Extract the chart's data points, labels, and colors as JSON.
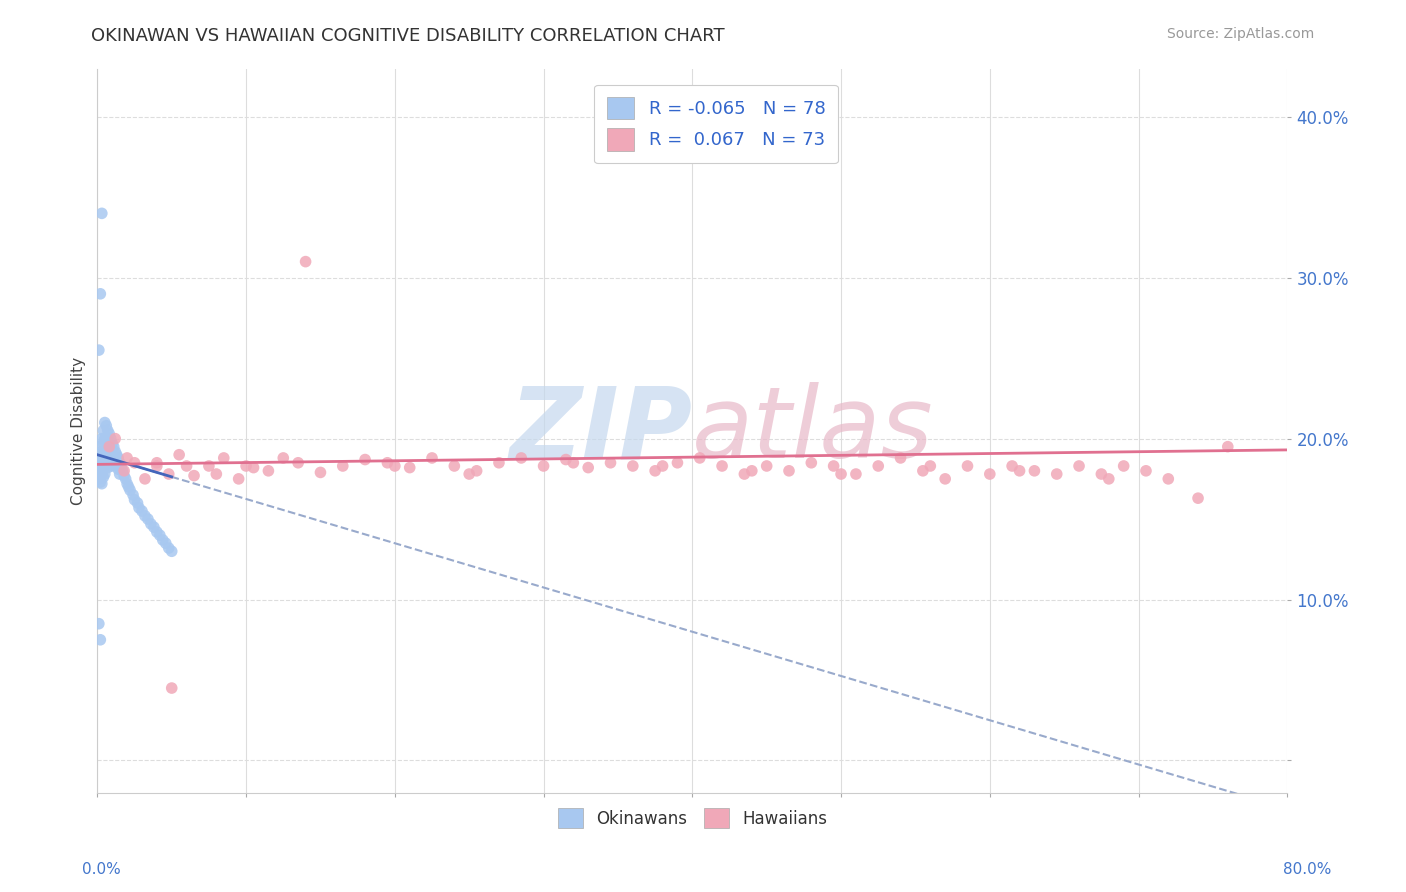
{
  "title": "OKINAWAN VS HAWAIIAN COGNITIVE DISABILITY CORRELATION CHART",
  "source": "Source: ZipAtlas.com",
  "ylabel": "Cognitive Disability",
  "xlim": [
    0.0,
    0.8
  ],
  "ylim": [
    -0.02,
    0.43
  ],
  "ytick_vals": [
    0.0,
    0.1,
    0.2,
    0.3,
    0.4
  ],
  "ytick_labels": [
    "",
    "10.0%",
    "20.0%",
    "30.0%",
    "40.0%"
  ],
  "xtick_vals": [
    0.0,
    0.1,
    0.2,
    0.3,
    0.4,
    0.5,
    0.6,
    0.7,
    0.8
  ],
  "okinawan_color": "#a8c8f0",
  "hawaiian_color": "#f0a8b8",
  "trend_ok_color": "#4466bb",
  "trend_ok_dash_color": "#99aacc",
  "trend_hw_color": "#e07090",
  "watermark_color": "#d0ddf0",
  "background_color": "#ffffff",
  "grid_color": "#dddddd",
  "legend_label1": "R = -0.065   N = 78",
  "legend_label2": "R =  0.067   N = 73",
  "bottom_label1": "Okinawans",
  "bottom_label2": "Hawaiians",
  "ok_x": [
    0.001,
    0.001,
    0.001,
    0.001,
    0.002,
    0.002,
    0.002,
    0.002,
    0.002,
    0.003,
    0.003,
    0.003,
    0.003,
    0.003,
    0.004,
    0.004,
    0.004,
    0.004,
    0.004,
    0.005,
    0.005,
    0.005,
    0.005,
    0.005,
    0.006,
    0.006,
    0.006,
    0.006,
    0.007,
    0.007,
    0.007,
    0.007,
    0.008,
    0.008,
    0.008,
    0.009,
    0.009,
    0.009,
    0.01,
    0.01,
    0.01,
    0.011,
    0.011,
    0.012,
    0.012,
    0.013,
    0.013,
    0.014,
    0.014,
    0.015,
    0.015,
    0.016,
    0.017,
    0.018,
    0.019,
    0.02,
    0.021,
    0.022,
    0.024,
    0.025,
    0.027,
    0.028,
    0.03,
    0.032,
    0.034,
    0.036,
    0.038,
    0.04,
    0.042,
    0.044,
    0.046,
    0.048,
    0.05,
    0.003,
    0.002,
    0.001,
    0.001,
    0.002
  ],
  "ok_y": [
    0.19,
    0.185,
    0.18,
    0.175,
    0.195,
    0.188,
    0.183,
    0.178,
    0.173,
    0.2,
    0.192,
    0.185,
    0.178,
    0.172,
    0.205,
    0.197,
    0.189,
    0.182,
    0.176,
    0.21,
    0.2,
    0.192,
    0.185,
    0.178,
    0.208,
    0.2,
    0.192,
    0.184,
    0.205,
    0.197,
    0.189,
    0.182,
    0.203,
    0.195,
    0.188,
    0.2,
    0.192,
    0.185,
    0.197,
    0.19,
    0.183,
    0.195,
    0.188,
    0.192,
    0.185,
    0.19,
    0.183,
    0.188,
    0.181,
    0.185,
    0.178,
    0.183,
    0.18,
    0.177,
    0.175,
    0.172,
    0.17,
    0.168,
    0.165,
    0.162,
    0.16,
    0.157,
    0.155,
    0.152,
    0.15,
    0.147,
    0.145,
    0.142,
    0.14,
    0.137,
    0.135,
    0.132,
    0.13,
    0.34,
    0.29,
    0.255,
    0.085,
    0.075
  ],
  "hw_x": [
    0.008,
    0.012,
    0.018,
    0.025,
    0.032,
    0.04,
    0.048,
    0.055,
    0.065,
    0.075,
    0.085,
    0.095,
    0.105,
    0.115,
    0.125,
    0.135,
    0.15,
    0.165,
    0.18,
    0.195,
    0.21,
    0.225,
    0.24,
    0.255,
    0.27,
    0.285,
    0.3,
    0.315,
    0.33,
    0.345,
    0.36,
    0.375,
    0.39,
    0.405,
    0.42,
    0.435,
    0.45,
    0.465,
    0.48,
    0.495,
    0.51,
    0.525,
    0.54,
    0.555,
    0.57,
    0.585,
    0.6,
    0.615,
    0.63,
    0.645,
    0.66,
    0.675,
    0.69,
    0.705,
    0.72,
    0.1,
    0.08,
    0.06,
    0.04,
    0.02,
    0.2,
    0.25,
    0.32,
    0.38,
    0.44,
    0.5,
    0.56,
    0.62,
    0.68,
    0.74,
    0.76,
    0.05,
    0.14
  ],
  "hw_y": [
    0.195,
    0.2,
    0.18,
    0.185,
    0.175,
    0.183,
    0.178,
    0.19,
    0.177,
    0.183,
    0.188,
    0.175,
    0.182,
    0.18,
    0.188,
    0.185,
    0.179,
    0.183,
    0.187,
    0.185,
    0.182,
    0.188,
    0.183,
    0.18,
    0.185,
    0.188,
    0.183,
    0.187,
    0.182,
    0.185,
    0.183,
    0.18,
    0.185,
    0.188,
    0.183,
    0.178,
    0.183,
    0.18,
    0.185,
    0.183,
    0.178,
    0.183,
    0.188,
    0.18,
    0.175,
    0.183,
    0.178,
    0.183,
    0.18,
    0.178,
    0.183,
    0.178,
    0.183,
    0.18,
    0.175,
    0.183,
    0.178,
    0.183,
    0.185,
    0.188,
    0.183,
    0.178,
    0.185,
    0.183,
    0.18,
    0.178,
    0.183,
    0.18,
    0.175,
    0.163,
    0.195,
    0.045,
    0.31
  ]
}
